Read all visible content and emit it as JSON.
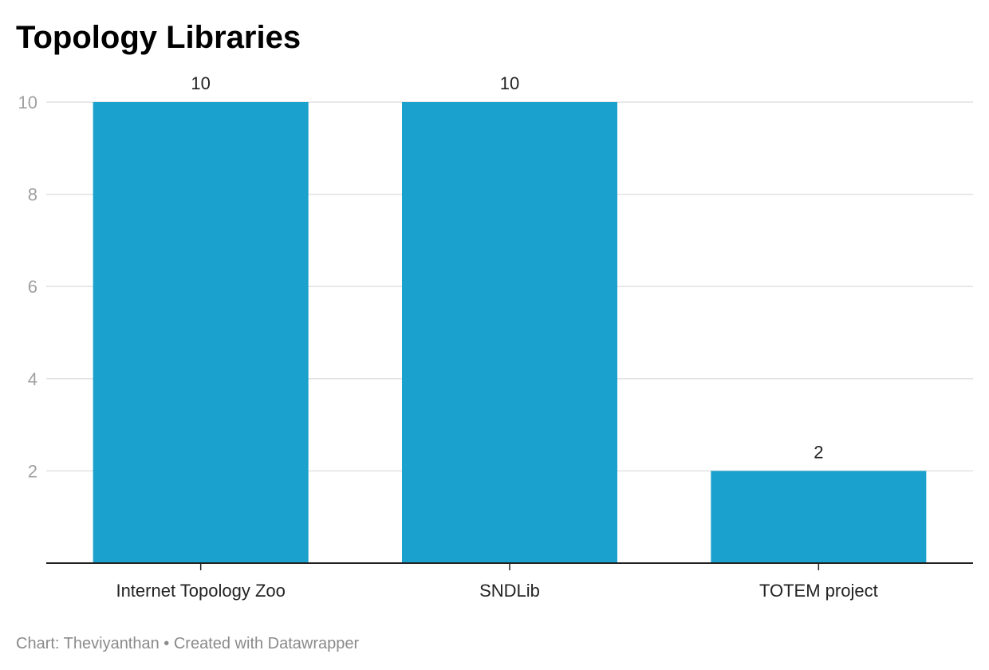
{
  "chart_data": {
    "type": "bar",
    "title": "Topology Libraries",
    "categories": [
      "Internet Topology Zoo",
      "SNDLib",
      "TOTEM project"
    ],
    "values": [
      10,
      10,
      2
    ],
    "value_labels": [
      "10",
      "10",
      "2"
    ],
    "xlabel": "",
    "ylabel": "",
    "ylim": [
      0,
      10
    ],
    "yticks": [
      2,
      4,
      6,
      8,
      10
    ],
    "ytick_labels": [
      "2",
      "4",
      "6",
      "8",
      "10"
    ],
    "grid": true,
    "legend": "none",
    "bar_color": "#1aa1cd"
  },
  "footer": {
    "text": "Chart: Theviyanthan • Created with Datawrapper"
  },
  "colors": {
    "bar": "#1aa1cd",
    "grid": "#e2e2e2",
    "axis": "#222222",
    "tick_text": "#a0a0a0",
    "footer_text": "#8a8a8a"
  }
}
